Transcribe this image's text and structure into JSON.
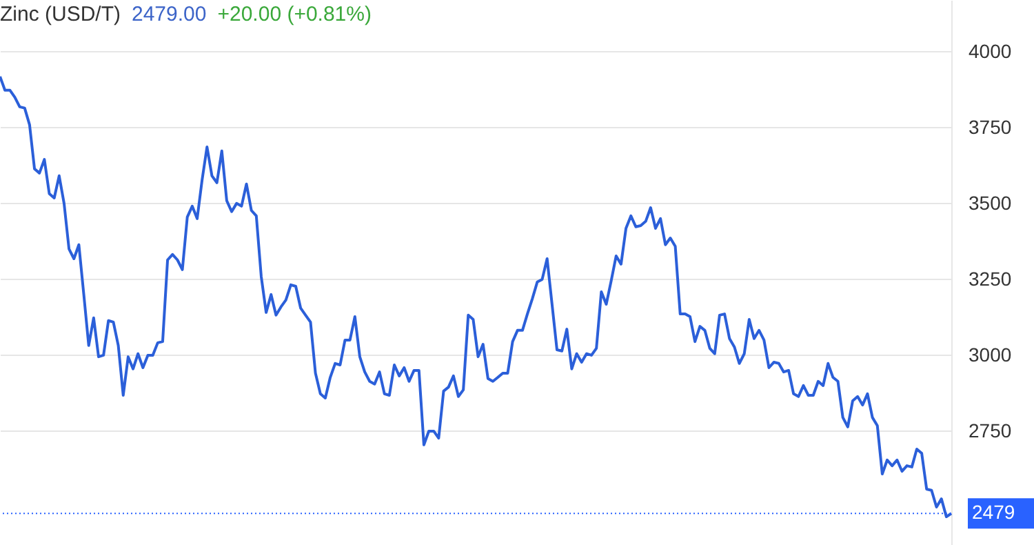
{
  "chart_data": {
    "type": "line",
    "title": "Zinc (USD/T)",
    "annotations": [
      "2479.00",
      "+20.00 (+0.81%)"
    ],
    "categories": [
      null,
      null,
      null,
      null,
      null,
      null,
      null,
      null,
      null,
      null,
      null,
      null,
      null,
      null,
      null,
      null,
      null,
      null,
      null,
      null,
      null,
      null,
      null,
      null,
      null,
      null,
      null,
      null,
      null,
      null,
      null,
      null,
      null,
      null,
      null,
      null,
      null,
      null,
      null,
      null,
      null,
      null,
      null,
      null,
      null,
      null,
      null,
      null,
      null,
      null,
      null,
      null,
      null,
      null,
      null,
      null,
      null,
      null,
      null,
      null,
      null,
      null,
      null,
      null,
      null,
      null,
      null,
      null,
      null,
      null,
      null,
      null,
      null,
      null,
      null,
      null,
      null,
      null,
      null,
      null,
      null,
      null,
      null,
      null,
      null,
      null,
      null,
      null,
      null,
      null,
      null,
      null,
      null,
      null,
      null,
      null,
      null,
      null,
      null,
      null,
      null,
      null,
      null,
      null,
      null,
      null,
      null,
      null,
      null,
      null,
      null,
      null,
      null,
      null,
      null,
      null,
      null,
      null,
      null,
      null,
      null,
      null,
      null,
      null,
      null,
      null,
      null,
      null,
      null,
      null,
      null,
      null,
      null,
      null,
      null,
      null,
      null,
      null,
      null,
      null,
      null,
      null,
      null,
      null,
      null,
      null,
      null,
      null,
      null,
      null,
      null,
      null,
      null,
      null,
      null,
      null,
      null,
      null,
      null,
      null,
      null,
      null,
      null,
      null,
      null,
      null,
      null,
      null,
      null,
      null,
      null,
      null,
      null,
      null,
      null,
      null,
      null,
      null,
      null,
      null,
      null,
      null,
      null,
      null,
      null,
      null,
      null,
      null,
      null,
      null,
      null,
      null,
      null,
      null
    ],
    "series": [
      {
        "color": "#2b5fd9",
        "values": [
          3918,
          3873,
          3873,
          3850,
          3818,
          3814,
          3759,
          3614,
          3600,
          3645,
          3532,
          3518,
          3591,
          3500,
          3350,
          3318,
          3364,
          3200,
          3032,
          3123,
          2995,
          3000,
          3114,
          3109,
          3032,
          2868,
          2995,
          2955,
          3005,
          2959,
          3000,
          3000,
          3041,
          3045,
          3314,
          3332,
          3314,
          3282,
          3455,
          3491,
          3450,
          3577,
          3686,
          3591,
          3568,
          3673,
          3509,
          3473,
          3500,
          3491,
          3564,
          3477,
          3459,
          3259,
          3141,
          3200,
          3132,
          3159,
          3182,
          3232,
          3227,
          3155,
          3132,
          3109,
          2941,
          2873,
          2859,
          2927,
          2973,
          2968,
          3050,
          3050,
          3127,
          2995,
          2945,
          2914,
          2905,
          2945,
          2873,
          2868,
          2968,
          2932,
          2959,
          2914,
          2950,
          2950,
          2705,
          2750,
          2750,
          2727,
          2882,
          2895,
          2932,
          2864,
          2886,
          3132,
          3118,
          2995,
          3036,
          2923,
          2914,
          2927,
          2941,
          2941,
          3045,
          3082,
          3082,
          3136,
          3186,
          3241,
          3250,
          3318,
          3168,
          3018,
          3014,
          3086,
          2955,
          3005,
          2977,
          3005,
          3000,
          3023,
          3209,
          3168,
          3245,
          3327,
          3300,
          3418,
          3459,
          3423,
          3427,
          3441,
          3486,
          3418,
          3450,
          3364,
          3386,
          3359,
          3136,
          3136,
          3127,
          3045,
          3095,
          3082,
          3023,
          3005,
          3132,
          3136,
          3055,
          3027,
          2973,
          3005,
          3118,
          3055,
          3082,
          3050,
          2959,
          2977,
          2973,
          2945,
          2950,
          2873,
          2864,
          2900,
          2868,
          2868,
          2914,
          2900,
          2973,
          2927,
          2914,
          2795,
          2764,
          2850,
          2864,
          2836,
          2873,
          2795,
          2768,
          2609,
          2655,
          2636,
          2655,
          2618,
          2636,
          2632,
          2691,
          2677,
          2559,
          2555,
          2500,
          2527,
          2468,
          2479
        ]
      }
    ],
    "ylim": [
      2375,
      4170
    ],
    "yticks": [
      2750,
      3000,
      3250,
      3500,
      3750,
      4000
    ],
    "grid": "y",
    "tick_labels": "y",
    "ref_lines": [
      {
        "axis": "y",
        "value": 2479,
        "label": "2479",
        "color": "#2962ff",
        "line_style": "dotted"
      }
    ]
  }
}
